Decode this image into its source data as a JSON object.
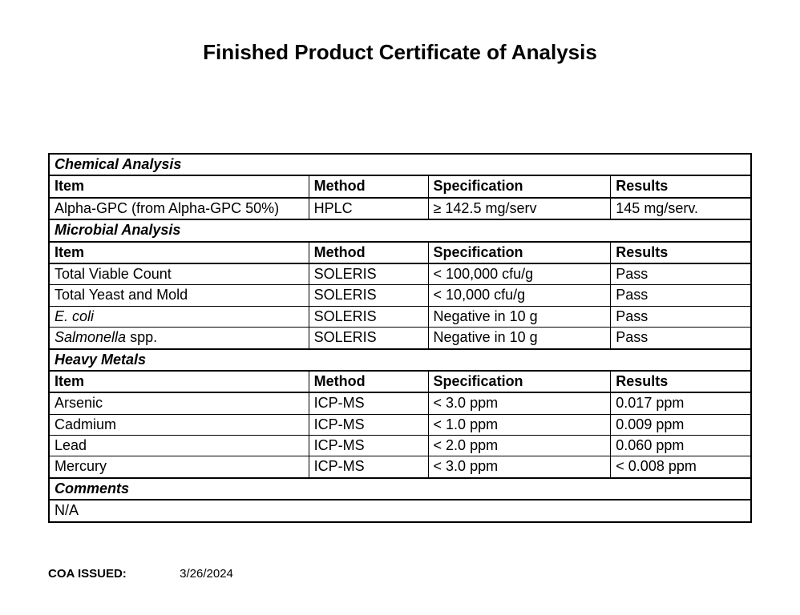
{
  "title": "Finished Product Certificate of Analysis",
  "columns": {
    "item": "Item",
    "method": "Method",
    "specification": "Specification",
    "results": "Results"
  },
  "sections": {
    "chemical": {
      "heading": "Chemical Analysis",
      "rows": [
        {
          "item": "Alpha-GPC (from Alpha-GPC 50%)",
          "method": "HPLC",
          "spec": "≥ 142.5 mg/serv",
          "results": "145 mg/serv."
        }
      ]
    },
    "microbial": {
      "heading": "Microbial Analysis",
      "rows": [
        {
          "item": "Total Viable Count",
          "method": "SOLERIS",
          "spec": "< 100,000 cfu/g",
          "results": "Pass"
        },
        {
          "item": "Total Yeast and Mold",
          "method": "SOLERIS",
          "spec": "< 10,000 cfu/g",
          "results": "Pass"
        },
        {
          "item_html": "E. coli",
          "item_italic": true,
          "method": "SOLERIS",
          "spec": "Negative in 10 g",
          "results": "Pass"
        },
        {
          "item_prefix_italic": "Salmonella",
          "item_suffix": " spp.",
          "method": "SOLERIS",
          "spec": "Negative in 10 g",
          "results": "Pass"
        }
      ]
    },
    "heavy_metals": {
      "heading": "Heavy Metals",
      "rows": [
        {
          "item": "Arsenic",
          "method": "ICP-MS",
          "spec": "< 3.0 ppm",
          "results": "0.017 ppm"
        },
        {
          "item": "Cadmium",
          "method": "ICP-MS",
          "spec": "< 1.0 ppm",
          "results": "0.009 ppm"
        },
        {
          "item": "Lead",
          "method": "ICP-MS",
          "spec": "< 2.0 ppm",
          "results": "0.060 ppm"
        },
        {
          "item": "Mercury",
          "method": "ICP-MS",
          "spec": "< 3.0 ppm",
          "results": "< 0.008 ppm"
        }
      ]
    },
    "comments": {
      "heading": "Comments",
      "value": "N/A"
    }
  },
  "footer": {
    "label": "COA ISSUED:",
    "date": "3/26/2024"
  }
}
